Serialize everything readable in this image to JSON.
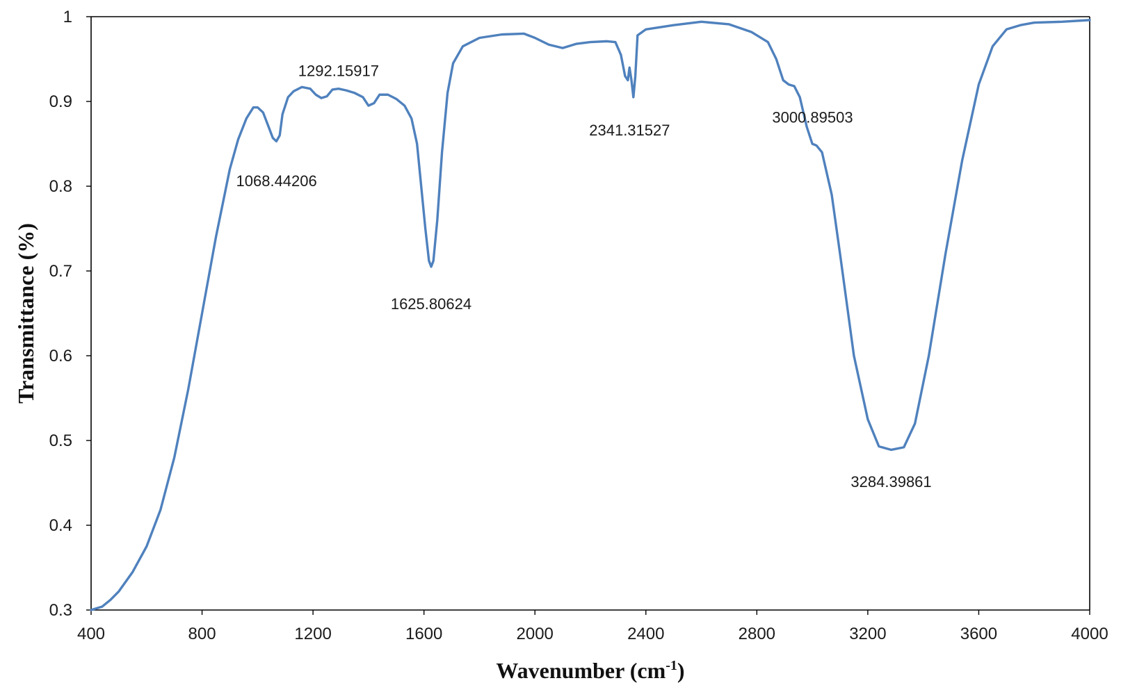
{
  "chart_data": {
    "type": "line",
    "xlabel": "Wavenumber (cm",
    "xlabel_sup": "-1",
    "xlabel_close": ")",
    "ylabel": "Transmittance (%)",
    "xlim": [
      400,
      4000
    ],
    "ylim": [
      0.3,
      1
    ],
    "x_ticks": [
      "400",
      "800",
      "1200",
      "1600",
      "2000",
      "2400",
      "2800",
      "3200",
      "3600",
      "4000"
    ],
    "y_ticks": [
      "0.3",
      "0.4",
      "0.5",
      "0.6",
      "0.7",
      "0.8",
      "0.9",
      "1"
    ],
    "grid": false,
    "line_color": "#4f81bd",
    "series": [
      {
        "points": [
          [
            400,
            0.3
          ],
          [
            420,
            0.302
          ],
          [
            440,
            0.304
          ],
          [
            470,
            0.312
          ],
          [
            500,
            0.322
          ],
          [
            550,
            0.345
          ],
          [
            600,
            0.375
          ],
          [
            650,
            0.418
          ],
          [
            700,
            0.48
          ],
          [
            750,
            0.56
          ],
          [
            800,
            0.65
          ],
          [
            850,
            0.74
          ],
          [
            900,
            0.82
          ],
          [
            930,
            0.855
          ],
          [
            960,
            0.88
          ],
          [
            985,
            0.893
          ],
          [
            1000,
            0.893
          ],
          [
            1020,
            0.887
          ],
          [
            1040,
            0.87
          ],
          [
            1055,
            0.857
          ],
          [
            1068,
            0.853
          ],
          [
            1080,
            0.86
          ],
          [
            1090,
            0.885
          ],
          [
            1110,
            0.905
          ],
          [
            1130,
            0.912
          ],
          [
            1160,
            0.917
          ],
          [
            1190,
            0.915
          ],
          [
            1210,
            0.908
          ],
          [
            1230,
            0.904
          ],
          [
            1250,
            0.906
          ],
          [
            1270,
            0.914
          ],
          [
            1292,
            0.915
          ],
          [
            1320,
            0.913
          ],
          [
            1350,
            0.91
          ],
          [
            1380,
            0.905
          ],
          [
            1400,
            0.895
          ],
          [
            1420,
            0.898
          ],
          [
            1440,
            0.908
          ],
          [
            1470,
            0.908
          ],
          [
            1500,
            0.903
          ],
          [
            1530,
            0.895
          ],
          [
            1555,
            0.88
          ],
          [
            1575,
            0.85
          ],
          [
            1590,
            0.8
          ],
          [
            1605,
            0.75
          ],
          [
            1618,
            0.712
          ],
          [
            1626,
            0.705
          ],
          [
            1634,
            0.712
          ],
          [
            1648,
            0.76
          ],
          [
            1665,
            0.84
          ],
          [
            1685,
            0.91
          ],
          [
            1705,
            0.945
          ],
          [
            1740,
            0.965
          ],
          [
            1800,
            0.975
          ],
          [
            1880,
            0.979
          ],
          [
            1960,
            0.98
          ],
          [
            2000,
            0.975
          ],
          [
            2050,
            0.967
          ],
          [
            2100,
            0.963
          ],
          [
            2150,
            0.968
          ],
          [
            2200,
            0.97
          ],
          [
            2260,
            0.971
          ],
          [
            2290,
            0.97
          ],
          [
            2310,
            0.955
          ],
          [
            2325,
            0.93
          ],
          [
            2335,
            0.925
          ],
          [
            2341,
            0.94
          ],
          [
            2348,
            0.925
          ],
          [
            2355,
            0.905
          ],
          [
            2362,
            0.93
          ],
          [
            2370,
            0.978
          ],
          [
            2400,
            0.985
          ],
          [
            2500,
            0.99
          ],
          [
            2600,
            0.994
          ],
          [
            2700,
            0.991
          ],
          [
            2780,
            0.982
          ],
          [
            2840,
            0.97
          ],
          [
            2870,
            0.95
          ],
          [
            2895,
            0.925
          ],
          [
            2915,
            0.92
          ],
          [
            2935,
            0.918
          ],
          [
            2955,
            0.905
          ],
          [
            2980,
            0.87
          ],
          [
            3000,
            0.85
          ],
          [
            3015,
            0.848
          ],
          [
            3035,
            0.84
          ],
          [
            3070,
            0.79
          ],
          [
            3100,
            0.72
          ],
          [
            3150,
            0.6
          ],
          [
            3200,
            0.525
          ],
          [
            3240,
            0.493
          ],
          [
            3284,
            0.489
          ],
          [
            3330,
            0.492
          ],
          [
            3370,
            0.52
          ],
          [
            3420,
            0.6
          ],
          [
            3480,
            0.72
          ],
          [
            3540,
            0.83
          ],
          [
            3600,
            0.92
          ],
          [
            3650,
            0.965
          ],
          [
            3700,
            0.985
          ],
          [
            3750,
            0.99
          ],
          [
            3800,
            0.993
          ],
          [
            3900,
            0.994
          ],
          [
            4000,
            0.996
          ]
        ]
      }
    ],
    "annotations": [
      {
        "text": "1068.44206",
        "x": 1068.44206,
        "y": 0.8
      },
      {
        "text": "1292.15917",
        "x": 1292.15917,
        "y": 0.93
      },
      {
        "text": "1625.80624",
        "x": 1625.80624,
        "y": 0.655
      },
      {
        "text": "2341.31527",
        "x": 2341.31527,
        "y": 0.86
      },
      {
        "text": "3000.89503",
        "x": 3000.89503,
        "y": 0.875
      },
      {
        "text": "3284.39861",
        "x": 3284.39861,
        "y": 0.445
      }
    ]
  }
}
